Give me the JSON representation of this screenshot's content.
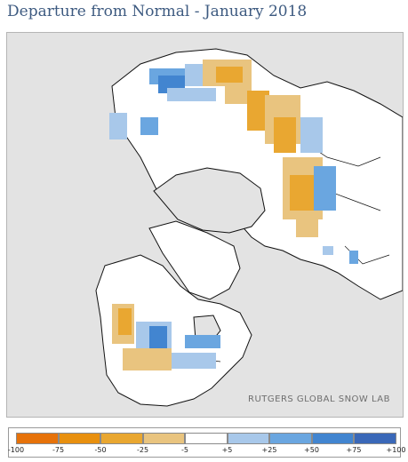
{
  "title": "Departure from Normal - January 2018",
  "credit": "RUTGERS GLOBAL SNOW LAB",
  "colors": {
    "background": "#e3e3e3",
    "land": "#ffffff",
    "coast": "#111111",
    "title": "#3d5a80"
  },
  "legend": {
    "labels": [
      "-100",
      "-75",
      "-50",
      "-25",
      "-5",
      "+5",
      "+25",
      "+50",
      "+75",
      "+100"
    ],
    "colors": [
      "#e6720a",
      "#e8900f",
      "#e9a731",
      "#e9c47f",
      "#ffffff",
      "#a8c8ea",
      "#6aa6e0",
      "#4285d0",
      "#3a68b8"
    ]
  }
}
